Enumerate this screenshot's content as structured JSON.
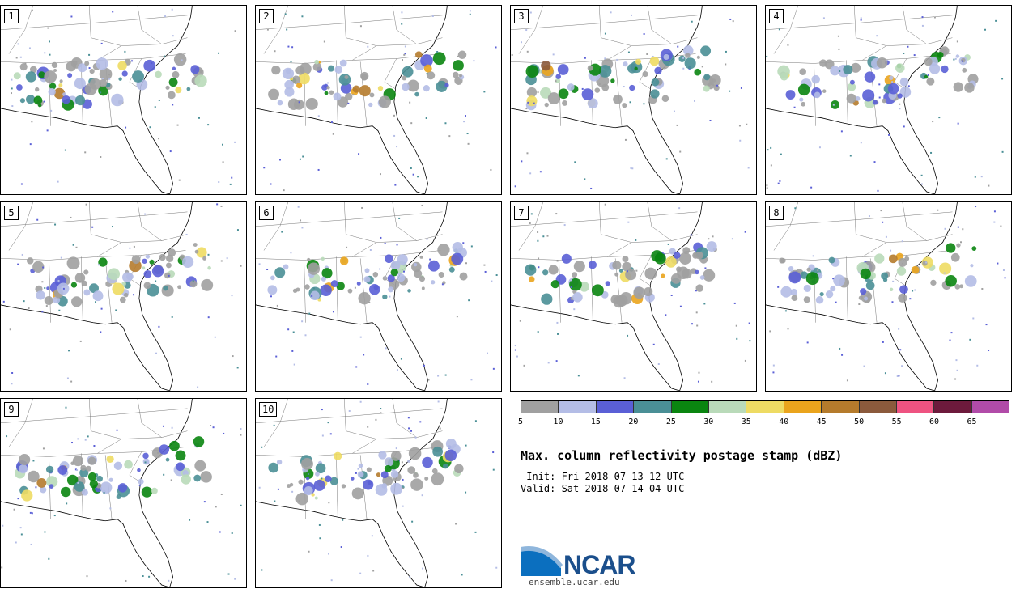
{
  "panels": [
    {
      "label": "1"
    },
    {
      "label": "2"
    },
    {
      "label": "3"
    },
    {
      "label": "4"
    },
    {
      "label": "5"
    },
    {
      "label": "6"
    },
    {
      "label": "7"
    },
    {
      "label": "8"
    },
    {
      "label": "9"
    },
    {
      "label": "10"
    }
  ],
  "colorbar": {
    "colors": [
      "#a0a0a0",
      "#b4bde6",
      "#5a5fd6",
      "#4a8f96",
      "#0a8510",
      "#b9dab9",
      "#eedb63",
      "#eaa41d",
      "#b57b2c",
      "#8b5a3c",
      "#ee5381",
      "#6d1a3c",
      "#b14ba8"
    ],
    "ticks": [
      "5",
      "10",
      "15",
      "20",
      "25",
      "30",
      "35",
      "40",
      "45",
      "50",
      "55",
      "60",
      "65"
    ]
  },
  "title": "Max. column reflectivity postage stamp (dBZ)",
  "init": " Init: Fri 2018-07-13 12 UTC",
  "valid": "Valid: Sat 2018-07-14 04 UTC",
  "logo": {
    "name": "NCAR",
    "url": "ensemble.ucar.edu"
  }
}
